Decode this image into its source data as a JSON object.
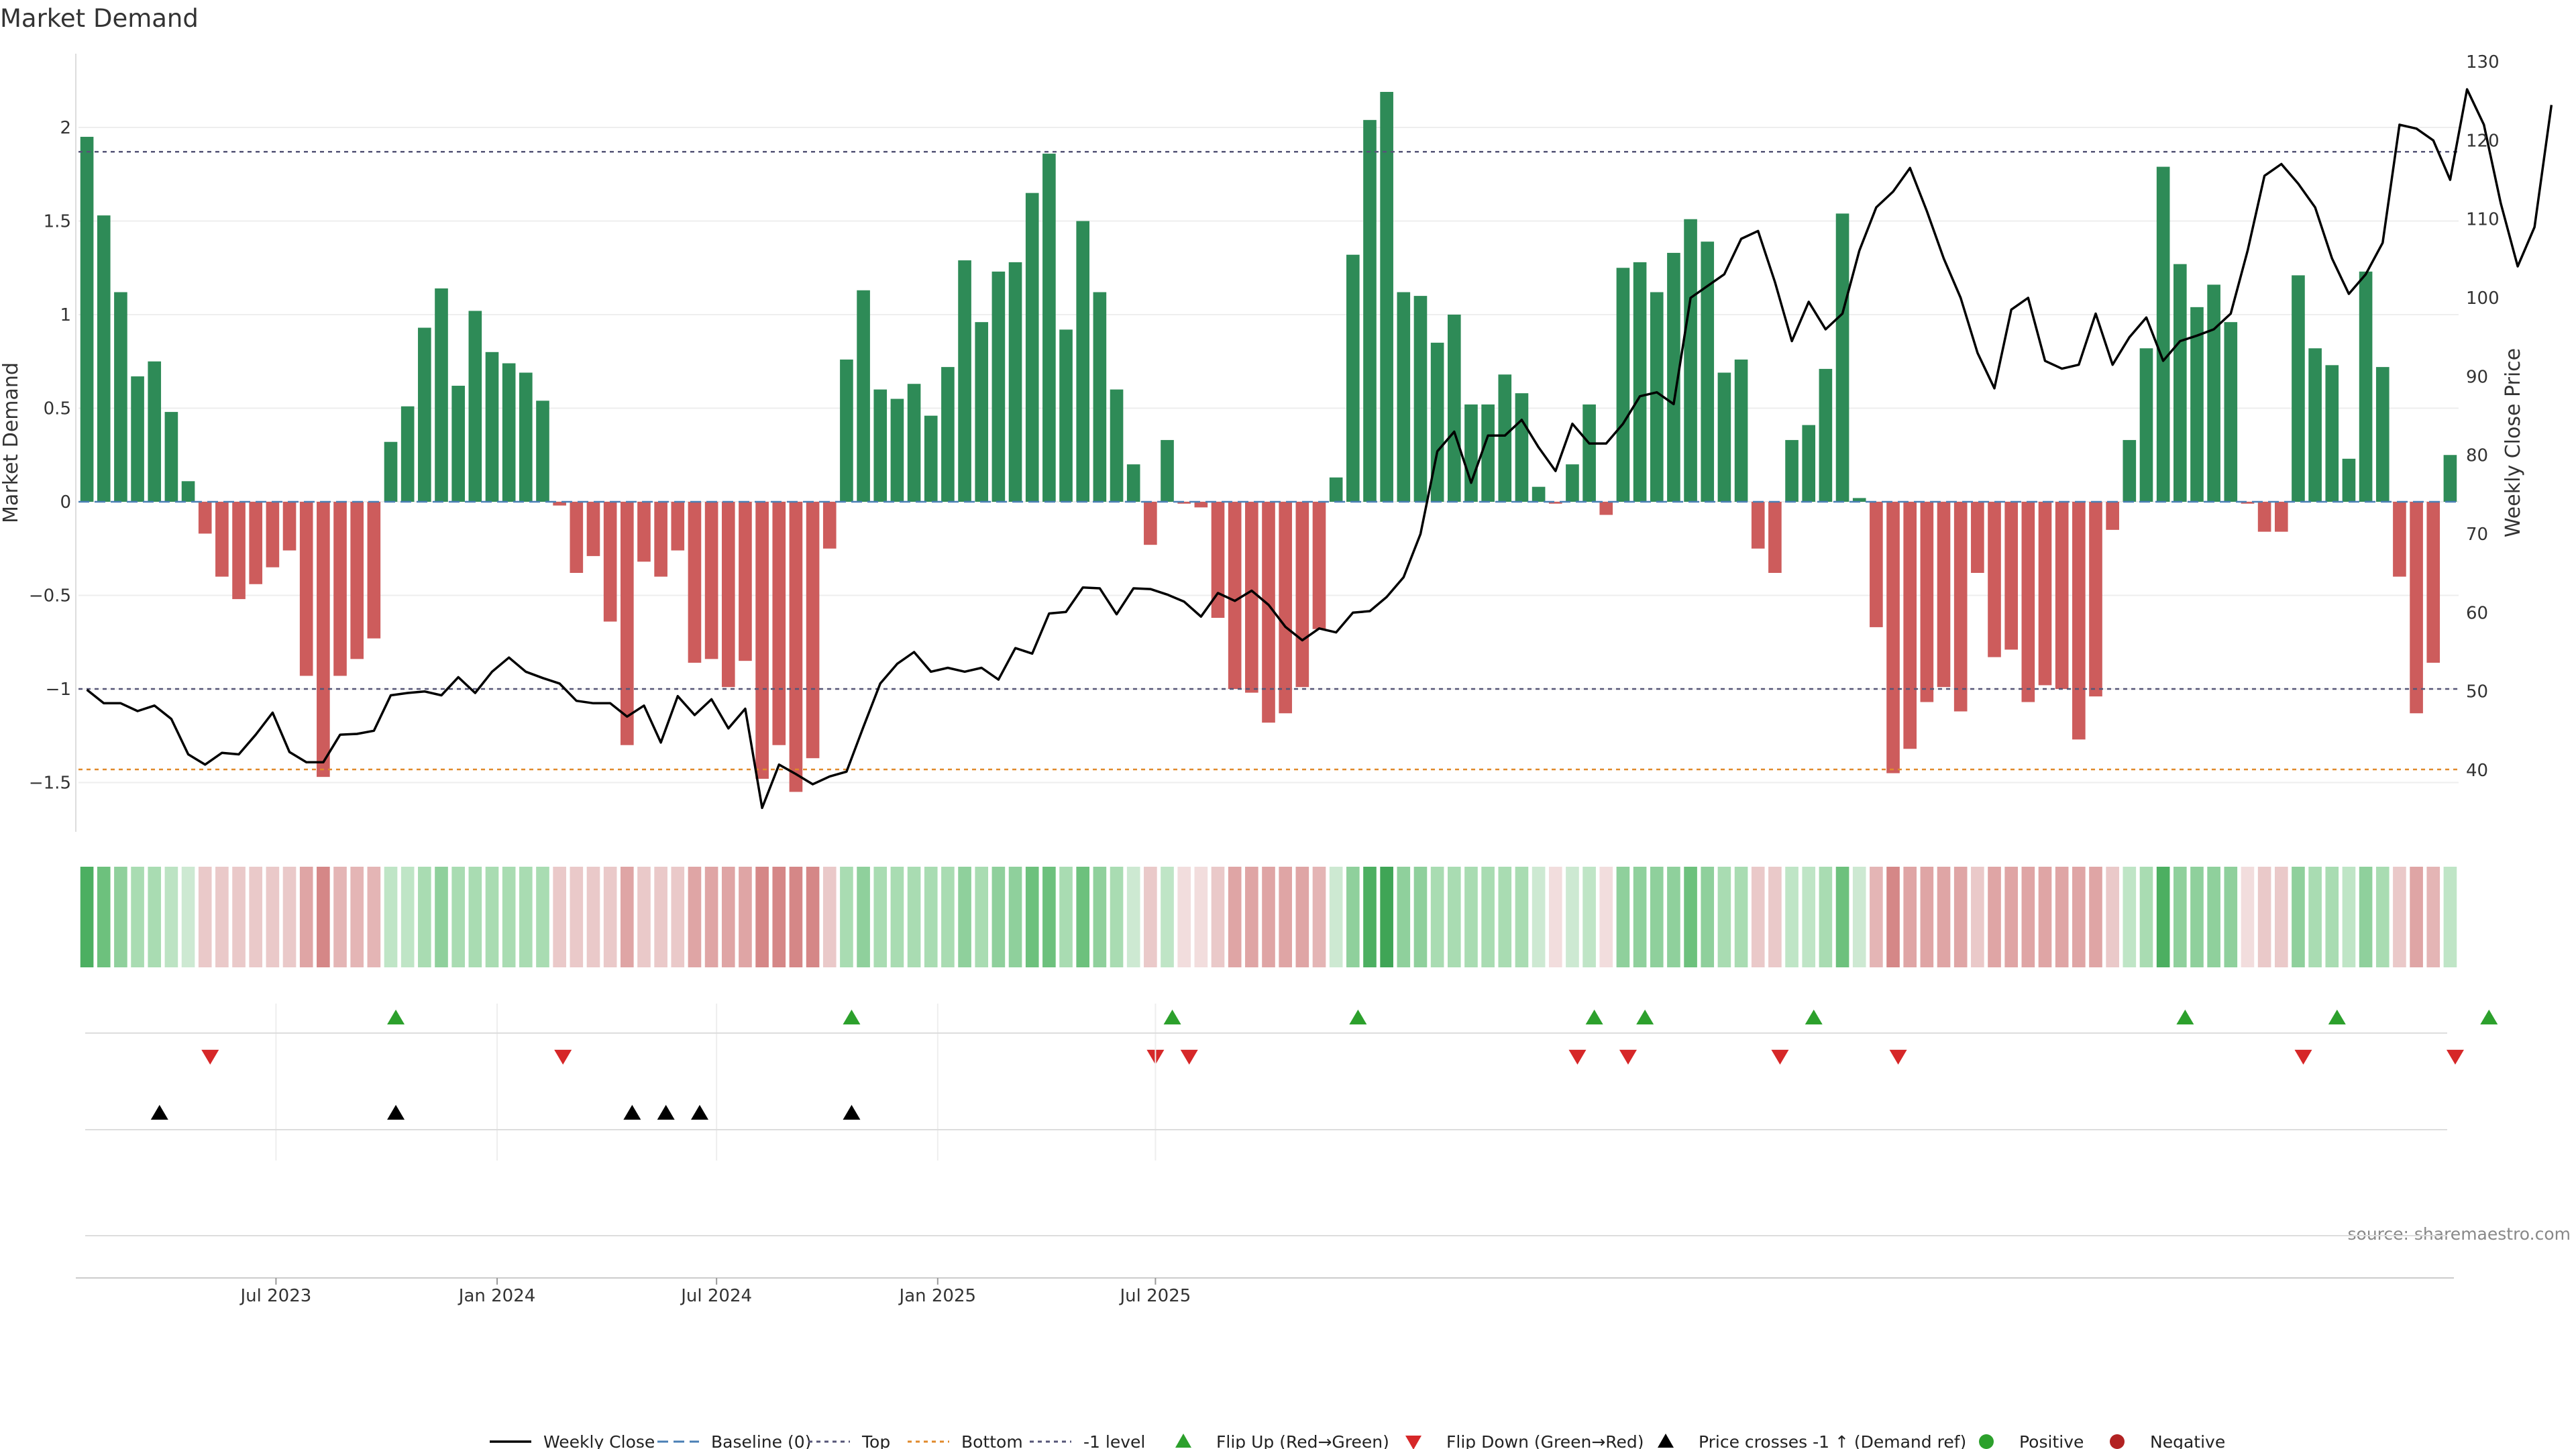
{
  "chart_data": {
    "type": "bar+line",
    "title": "Market Demand",
    "ylabel_left": "Market Demand",
    "ylabel_right": "Weekly Close Price",
    "ylim_left": [
      -1.75,
      2.4
    ],
    "ylim_right": [
      30,
      131
    ],
    "yticks_left": [
      {
        "v": 2,
        "label": "2"
      },
      {
        "v": 1.5,
        "label": "1.5"
      },
      {
        "v": 1,
        "label": "1"
      },
      {
        "v": 0.5,
        "label": "0.5"
      },
      {
        "v": 0,
        "label": "0"
      },
      {
        "v": -0.5,
        "label": "−0.5"
      },
      {
        "v": -1,
        "label": "−1"
      },
      {
        "v": -1.5,
        "label": "−1.5"
      }
    ],
    "yticks_right": [
      130,
      120,
      110,
      100,
      90,
      80,
      70,
      60,
      50,
      40
    ],
    "x_ticks": [
      {
        "idx": 11.2,
        "label": "Jul 2023"
      },
      {
        "idx": 24.3,
        "label": "Jan 2024"
      },
      {
        "idx": 37.3,
        "label": "Jul 2024"
      },
      {
        "idx": 50.4,
        "label": "Jan 2025"
      },
      {
        "idx": 63.3,
        "label": "Jul 2025"
      }
    ],
    "reference_levels": {
      "top": 1.87,
      "bottom": -1.43,
      "minus_one": -1.0
    },
    "demand": [
      1.95,
      1.53,
      1.12,
      0.67,
      0.75,
      0.48,
      0.11,
      -0.17,
      -0.4,
      -0.52,
      -0.44,
      -0.35,
      -0.26,
      -0.93,
      -1.47,
      -0.93,
      -0.84,
      -0.73,
      0.32,
      0.51,
      0.93,
      1.14,
      0.62,
      1.02,
      0.8,
      0.74,
      0.69,
      0.54,
      -0.02,
      -0.38,
      -0.29,
      -0.64,
      -1.3,
      -0.32,
      -0.4,
      -0.26,
      -0.86,
      -0.84,
      -0.99,
      -0.85,
      -1.48,
      -1.3,
      -1.55,
      -1.37,
      -0.25,
      0.76,
      1.13,
      0.6,
      0.55,
      0.63,
      0.46,
      0.72,
      1.29,
      0.96,
      1.23,
      1.28,
      1.65,
      1.86,
      0.92,
      1.5,
      1.12,
      0.6,
      0.2,
      -0.23,
      0.33,
      -0.01,
      -0.03,
      -0.62,
      -1.0,
      -1.02,
      -1.18,
      -1.13,
      -0.99,
      -0.68,
      0.13,
      1.32,
      2.04,
      2.19,
      1.12,
      1.1,
      0.85,
      1.0,
      0.52,
      0.52,
      0.68,
      0.58,
      0.08,
      -0.01,
      0.2,
      0.52,
      -0.07,
      1.25,
      1.28,
      1.12,
      1.33,
      1.51,
      1.39,
      0.69,
      0.76,
      -0.25,
      -0.38,
      0.33,
      0.41,
      0.71,
      1.54,
      0.02,
      -0.67,
      -1.45,
      -1.32,
      -1.07,
      -0.99,
      -1.12,
      -0.38,
      -0.83,
      -0.79,
      -1.07,
      -0.98,
      -1.0,
      -1.27,
      -1.04,
      -0.15,
      0.33,
      0.82,
      1.79,
      1.27,
      1.04,
      1.16,
      0.96,
      -0.01,
      -0.16,
      -0.16,
      1.21,
      0.82,
      0.73,
      0.23,
      1.23,
      0.72,
      -0.4,
      -1.13,
      -0.86,
      0.25
    ],
    "price": [
      50.2,
      48.5,
      48.5,
      47.5,
      48.2,
      46.5,
      42,
      40.7,
      42.2,
      42,
      44.5,
      47.3,
      42.3,
      41,
      41,
      44.5,
      44.6,
      45,
      49.5,
      49.8,
      50,
      49.5,
      51.8,
      49.8,
      52.5,
      54.3,
      52.5,
      51.7,
      51,
      48.8,
      48.5,
      48.5,
      46.8,
      48.2,
      43.5,
      49.4,
      47,
      49,
      45.3,
      47.8,
      35.2,
      40.7,
      39.5,
      38.2,
      39.2,
      39.8,
      45.5,
      51,
      53.5,
      55,
      52.5,
      53,
      52.5,
      53,
      51.5,
      55.5,
      54.8,
      59.9,
      60.1,
      63.2,
      63.1,
      59.8,
      63.1,
      63,
      62.3,
      61.4,
      59.5,
      62.5,
      61.5,
      62.8,
      61,
      58.2,
      56.5,
      58,
      57.5,
      60,
      60.2,
      62,
      64.5,
      70,
      80.5,
      83,
      76.5,
      82.5,
      82.5,
      84.5,
      81,
      78,
      84,
      81.5,
      81.5,
      84,
      87.5,
      88,
      86.5,
      100,
      101.5,
      103,
      107.5,
      108.5,
      102,
      94.5,
      99.5,
      96,
      98,
      106,
      111.5,
      113.5,
      116.5,
      111,
      105,
      100,
      93,
      88.5,
      98.5,
      100,
      92,
      91,
      91.5,
      98,
      91.5,
      95,
      97.5,
      92,
      94.5,
      95.2,
      96,
      98,
      106,
      115.5,
      117,
      114.5,
      111.5,
      105,
      100.5,
      103,
      107,
      122,
      121.5,
      120,
      115,
      126.5,
      122,
      112,
      104,
      109,
      124.5
    ],
    "strip_colors": [
      "#4caf61",
      "#6dc17d",
      "#8fd09c",
      "#a9dcb2",
      "#a9dcb2",
      "#bce3c3",
      "#cde9d2",
      "#eac9c9",
      "#eac9c9",
      "#eac9c9",
      "#eac9c9",
      "#eac9c9",
      "#eac9c9",
      "#dfa5a5",
      "#d58787",
      "#e4b5b5",
      "#e4b5b5",
      "#e4b5b5",
      "#bfe5c6",
      "#bfe5c6",
      "#a9dcb2",
      "#8fd09c",
      "#a9dcb2",
      "#a9dcb2",
      "#a9dcb2",
      "#a9dcb2",
      "#a9dcb2",
      "#a9dcb2",
      "#eac9c9",
      "#eac9c9",
      "#eac9c9",
      "#eac9c9",
      "#dfa5a5",
      "#eac9c9",
      "#eac9c9",
      "#eac9c9",
      "#dfa5a5",
      "#dfa5a5",
      "#dfa5a5",
      "#dfa5a5",
      "#d58787",
      "#d58787",
      "#d58787",
      "#d58787",
      "#eac9c9",
      "#a9dcb2",
      "#8fd09c",
      "#a9dcb2",
      "#a9dcb2",
      "#a9dcb2",
      "#a9dcb2",
      "#a9dcb2",
      "#8fd09c",
      "#a9dcb2",
      "#8fd09c",
      "#8fd09c",
      "#6dc17d",
      "#6dc17d",
      "#a9dcb2",
      "#6dc17d",
      "#8fd09c",
      "#a9dcb2",
      "#cde9d2",
      "#eac9c9",
      "#bfe5c6",
      "#f2dddd",
      "#f2dddd",
      "#eac9c9",
      "#dfa5a5",
      "#dfa5a5",
      "#dfa5a5",
      "#dfa5a5",
      "#dfa5a5",
      "#e4b5b5",
      "#cde9d2",
      "#8fd09c",
      "#4caf61",
      "#3fa556",
      "#8fd09c",
      "#8fd09c",
      "#a9dcb2",
      "#a9dcb2",
      "#a9dcb2",
      "#a9dcb2",
      "#a9dcb2",
      "#a9dcb2",
      "#cde9d2",
      "#f2dddd",
      "#cde9d2",
      "#bfe5c6",
      "#f2dddd",
      "#8fd09c",
      "#8fd09c",
      "#8fd09c",
      "#8fd09c",
      "#6dc17d",
      "#8fd09c",
      "#a9dcb2",
      "#a9dcb2",
      "#eac9c9",
      "#eac9c9",
      "#bfe5c6",
      "#bfe5c6",
      "#a9dcb2",
      "#6dc17d",
      "#cde9d2",
      "#e4b5b5",
      "#d58787",
      "#dfa5a5",
      "#dfa5a5",
      "#dfa5a5",
      "#dfa5a5",
      "#eac9c9",
      "#dfa5a5",
      "#dfa5a5",
      "#dfa5a5",
      "#dfa5a5",
      "#dfa5a5",
      "#dfa5a5",
      "#dfa5a5",
      "#eac9c9",
      "#bfe5c6",
      "#a9dcb2",
      "#4caf61",
      "#8fd09c",
      "#8fd09c",
      "#8fd09c",
      "#8fd09c",
      "#f2dddd",
      "#eac9c9",
      "#eac9c9",
      "#8fd09c",
      "#a9dcb2",
      "#a9dcb2",
      "#bfe5c6",
      "#8fd09c",
      "#a9dcb2",
      "#eac9c9",
      "#dfa5a5",
      "#e4b5b5",
      "#bfe5c6"
    ],
    "flip_up_idx": [
      18.3,
      45.3,
      64.3,
      75.3,
      89.3,
      92.3,
      102.3,
      124.3,
      133.3,
      142.3
    ],
    "flip_down_idx": [
      7.3,
      28.2,
      63.3,
      65.3,
      88.3,
      91.3,
      100.3,
      107.3,
      131.3,
      140.3
    ],
    "cross_up_idx": [
      4.3,
      18.3,
      32.3,
      34.3,
      36.3,
      45.3
    ],
    "source": "source: sharemaestro.com",
    "legend": [
      {
        "key": "line",
        "label": "Weekly Close"
      },
      {
        "key": "baseline",
        "label": "Baseline (0)"
      },
      {
        "key": "top",
        "label": "Top"
      },
      {
        "key": "bottom",
        "label": "Bottom"
      },
      {
        "key": "minus1",
        "label": "-1 level"
      },
      {
        "key": "flipup",
        "label": "Flip Up (Red→Green)"
      },
      {
        "key": "flipdown",
        "label": "Flip Down (Green→Red)"
      },
      {
        "key": "cross",
        "label": "Price crosses -1 ↑ (Demand ref)"
      },
      {
        "key": "pos",
        "label": "Positive"
      },
      {
        "key": "neg",
        "label": "Negative"
      }
    ],
    "colors": {
      "positive": "#2e8b57",
      "negative": "#cd5c5c",
      "line": "#000000",
      "baseline": "#4a7fb5",
      "top": "#555577",
      "bottom": "#e08a2c",
      "flip_up": "#2ca02c",
      "flip_down": "#d62728",
      "cross": "#000000",
      "pos_dot": "#2ca02c",
      "neg_dot": "#b22222"
    }
  }
}
